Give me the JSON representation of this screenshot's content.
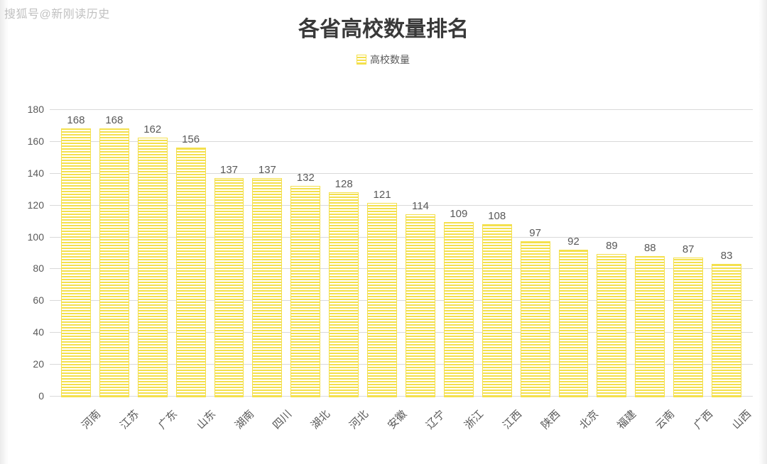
{
  "watermark": "搜狐号@新刚读历史",
  "chart": {
    "type": "bar",
    "title": "各省高校数量排名",
    "title_fontsize": 30,
    "title_color": "#393939",
    "legend_label": "高校数量",
    "legend_fontsize": 14,
    "legend_color": "#595959",
    "categories": [
      "河南",
      "江苏",
      "广东",
      "山东",
      "湖南",
      "四川",
      "湖北",
      "河北",
      "安徽",
      "辽宁",
      "浙江",
      "江西",
      "陕西",
      "北京",
      "福建",
      "云南",
      "广西",
      "山西"
    ],
    "values": [
      168,
      168,
      162,
      156,
      137,
      137,
      132,
      128,
      121,
      114,
      109,
      108,
      97,
      92,
      89,
      88,
      87,
      83
    ],
    "bar_color": "#f4e04d",
    "bar_pattern": "horizontal-stripe",
    "bar_width_ratio": 0.74,
    "ylim": [
      0,
      180
    ],
    "ytick_step": 20,
    "yticks": [
      0,
      20,
      40,
      60,
      80,
      100,
      120,
      140,
      160,
      180
    ],
    "grid_color": "#d9d9d9",
    "background_color": "#ffffff",
    "axis_label_color": "#595959",
    "axis_label_fontsize": 14,
    "value_label_fontsize": 15,
    "x_label_rotation_deg": -45
  }
}
